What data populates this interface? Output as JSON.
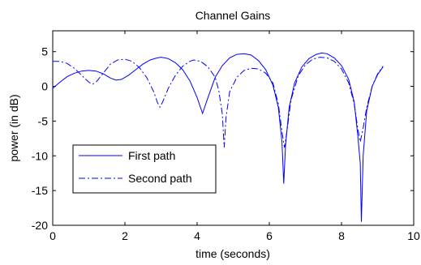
{
  "chart_data": {
    "type": "line",
    "title": "Channel Gains",
    "xlabel": "time (seconds)",
    "ylabel": "power (in dB)",
    "xlim": [
      0,
      10
    ],
    "ylim": [
      -20,
      8
    ],
    "xticks": [
      0,
      2,
      4,
      6,
      8,
      10
    ],
    "yticks": [
      5,
      0,
      -5,
      -10,
      -15,
      -20
    ],
    "grid": false,
    "legend_placement": "lower-left",
    "series": [
      {
        "name": "First path",
        "color": "#0000ff",
        "style": "solid",
        "points": [
          [
            0.0,
            -0.3
          ],
          [
            0.2,
            0.6
          ],
          [
            0.4,
            1.4
          ],
          [
            0.6,
            1.9
          ],
          [
            0.8,
            2.2
          ],
          [
            1.0,
            2.3
          ],
          [
            1.2,
            2.2
          ],
          [
            1.4,
            1.8
          ],
          [
            1.6,
            1.2
          ],
          [
            1.75,
            0.9
          ],
          [
            1.9,
            1.0
          ],
          [
            2.1,
            1.6
          ],
          [
            2.3,
            2.4
          ],
          [
            2.5,
            3.2
          ],
          [
            2.7,
            3.8
          ],
          [
            2.9,
            4.1
          ],
          [
            3.0,
            4.2
          ],
          [
            3.2,
            4.0
          ],
          [
            3.4,
            3.4
          ],
          [
            3.6,
            2.4
          ],
          [
            3.8,
            0.8
          ],
          [
            4.0,
            -1.6
          ],
          [
            4.15,
            -3.9
          ],
          [
            4.3,
            -1.6
          ],
          [
            4.5,
            1.3
          ],
          [
            4.7,
            3.0
          ],
          [
            4.9,
            4.1
          ],
          [
            5.1,
            4.6
          ],
          [
            5.3,
            4.7
          ],
          [
            5.5,
            4.5
          ],
          [
            5.7,
            3.7
          ],
          [
            5.9,
            2.4
          ],
          [
            6.1,
            0.2
          ],
          [
            6.25,
            -3.0
          ],
          [
            6.35,
            -8.0
          ],
          [
            6.4,
            -14.0
          ],
          [
            6.45,
            -8.5
          ],
          [
            6.55,
            -3.0
          ],
          [
            6.7,
            0.5
          ],
          [
            6.9,
            2.8
          ],
          [
            7.1,
            4.0
          ],
          [
            7.3,
            4.6
          ],
          [
            7.45,
            4.8
          ],
          [
            7.6,
            4.7
          ],
          [
            7.8,
            4.1
          ],
          [
            8.0,
            3.0
          ],
          [
            8.2,
            1.0
          ],
          [
            8.35,
            -2.2
          ],
          [
            8.45,
            -7.0
          ],
          [
            8.52,
            -11.0
          ],
          [
            8.55,
            -19.5
          ],
          [
            8.6,
            -10.0
          ],
          [
            8.7,
            -3.5
          ],
          [
            8.85,
            0.0
          ],
          [
            9.0,
            1.7
          ],
          [
            9.15,
            2.8
          ]
        ]
      },
      {
        "name": "Second path",
        "color": "#0000ff",
        "style": "dashdot",
        "points": [
          [
            0.0,
            3.6
          ],
          [
            0.2,
            3.6
          ],
          [
            0.4,
            3.3
          ],
          [
            0.6,
            2.6
          ],
          [
            0.8,
            1.6
          ],
          [
            1.0,
            0.6
          ],
          [
            1.1,
            0.3
          ],
          [
            1.2,
            0.6
          ],
          [
            1.4,
            1.9
          ],
          [
            1.6,
            3.2
          ],
          [
            1.8,
            3.8
          ],
          [
            2.0,
            3.9
          ],
          [
            2.2,
            3.6
          ],
          [
            2.4,
            2.7
          ],
          [
            2.6,
            1.3
          ],
          [
            2.8,
            -0.8
          ],
          [
            2.9,
            -2.3
          ],
          [
            2.97,
            -3.0
          ],
          [
            3.05,
            -2.2
          ],
          [
            3.2,
            -0.3
          ],
          [
            3.4,
            1.6
          ],
          [
            3.6,
            2.9
          ],
          [
            3.8,
            3.6
          ],
          [
            3.9,
            3.8
          ],
          [
            4.1,
            3.6
          ],
          [
            4.3,
            2.8
          ],
          [
            4.5,
            1.3
          ],
          [
            4.6,
            -0.6
          ],
          [
            4.7,
            -4.0
          ],
          [
            4.75,
            -8.8
          ],
          [
            4.8,
            -4.5
          ],
          [
            4.9,
            -0.8
          ],
          [
            5.1,
            1.3
          ],
          [
            5.3,
            2.3
          ],
          [
            5.5,
            2.6
          ],
          [
            5.7,
            2.5
          ],
          [
            5.9,
            1.9
          ],
          [
            6.1,
            0.5
          ],
          [
            6.25,
            -2.5
          ],
          [
            6.35,
            -6.5
          ],
          [
            6.42,
            -8.8
          ],
          [
            6.5,
            -6.0
          ],
          [
            6.6,
            -2.0
          ],
          [
            6.8,
            1.5
          ],
          [
            7.0,
            3.1
          ],
          [
            7.2,
            3.9
          ],
          [
            7.4,
            4.2
          ],
          [
            7.6,
            4.1
          ],
          [
            7.8,
            3.6
          ],
          [
            8.0,
            2.5
          ],
          [
            8.2,
            0.5
          ],
          [
            8.35,
            -2.5
          ],
          [
            8.45,
            -6.0
          ],
          [
            8.52,
            -8.0
          ],
          [
            8.6,
            -6.0
          ],
          [
            8.7,
            -3.0
          ],
          [
            8.85,
            0.0
          ],
          [
            9.0,
            1.8
          ],
          [
            9.15,
            2.9
          ]
        ]
      }
    ]
  }
}
